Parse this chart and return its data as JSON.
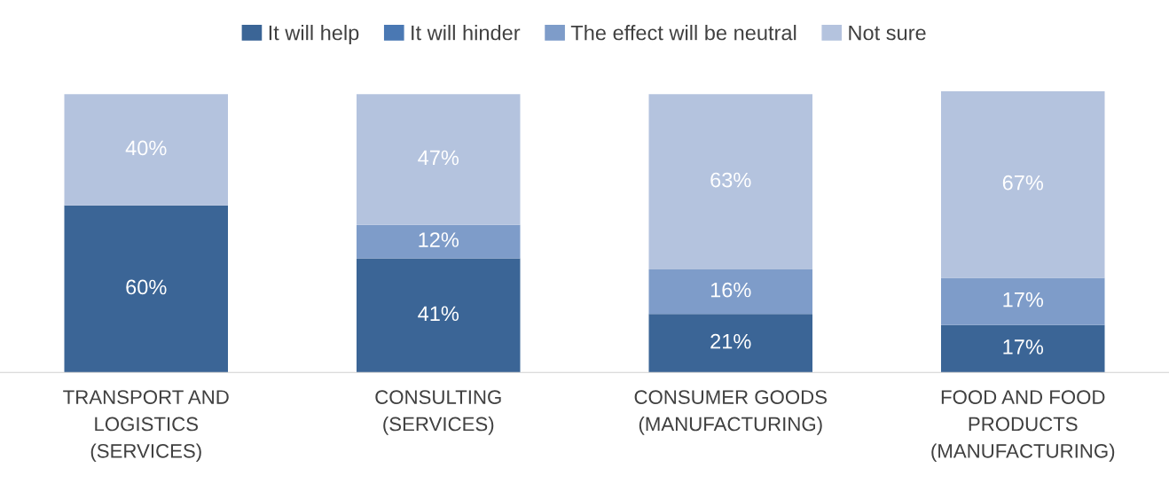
{
  "chart_data": {
    "type": "bar",
    "stacked": true,
    "categories": [
      "TRANSPORT AND\nLOGISTICS\n(SERVICES)",
      "CONSULTING\n(SERVICES)",
      "CONSUMER GOODS\n(MANUFACTURING)",
      "FOOD AND FOOD\nPRODUCTS\n(MANUFACTURING)"
    ],
    "series": [
      {
        "name": "It will help",
        "color": "#3b6596",
        "values": [
          60,
          41,
          21,
          17
        ],
        "value_labels": [
          "60%",
          "41%",
          "21%",
          "17%"
        ]
      },
      {
        "name": "It will hinder",
        "color": "#4a78b3",
        "values": [
          0,
          0,
          0,
          0
        ],
        "value_labels": [
          null,
          null,
          null,
          null
        ]
      },
      {
        "name": "The effect will be neutral",
        "color": "#7e9cc9",
        "values": [
          0,
          12,
          16,
          17
        ],
        "value_labels": [
          null,
          "12%",
          "16%",
          "17%"
        ]
      },
      {
        "name": "Not sure",
        "color": "#b4c3de",
        "values": [
          40,
          47,
          63,
          67
        ],
        "value_labels": [
          "40%",
          "47%",
          "63%",
          "67%"
        ]
      }
    ],
    "ylim": [
      0,
      101
    ],
    "tick_labels": "x",
    "grid": false,
    "legend": "top"
  }
}
